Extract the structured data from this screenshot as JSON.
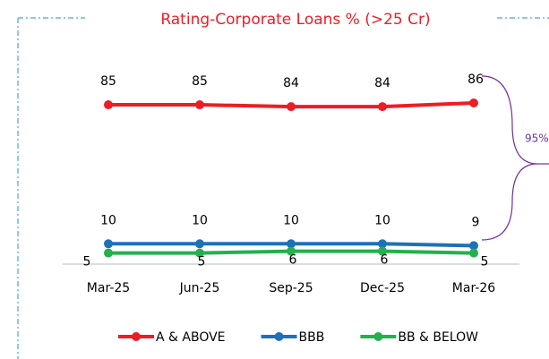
{
  "chart_data": {
    "type": "line",
    "title": "Rating-Corporate Loans % (>25 Cr)",
    "categories": [
      "Mar-25",
      "Jun-25",
      "Sep-25",
      "Dec-25",
      "Mar-26"
    ],
    "series": [
      {
        "name": "A & ABOVE",
        "color": "#ee1c25",
        "values": [
          85,
          85,
          84,
          84,
          86
        ]
      },
      {
        "name": "BBB",
        "color": "#1f70b8",
        "values": [
          10,
          10,
          10,
          10,
          9
        ]
      },
      {
        "name": "BB & BELOW",
        "color": "#22b14c",
        "values": [
          5,
          5,
          6,
          6,
          5
        ]
      }
    ],
    "ylim": [
      0,
      100
    ],
    "grid": false,
    "legend": "bottom",
    "annotation": "95%"
  }
}
